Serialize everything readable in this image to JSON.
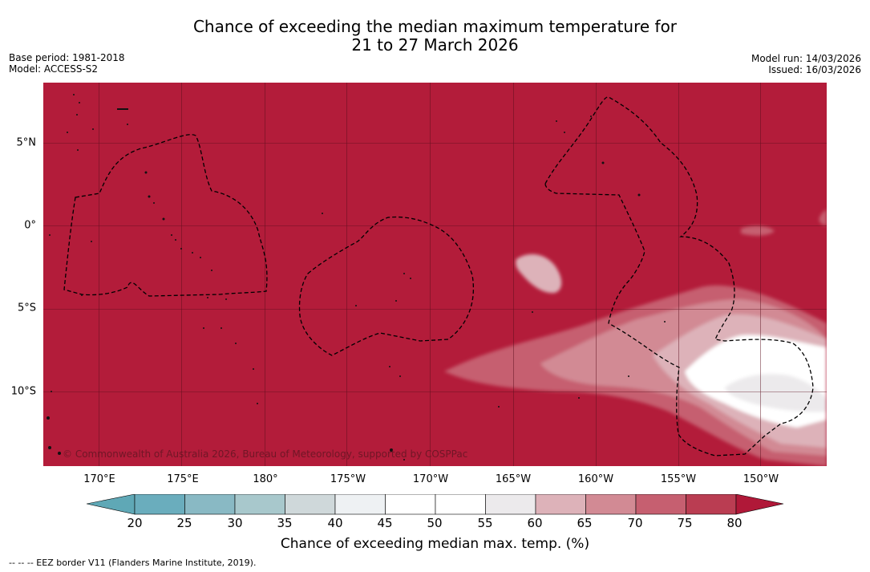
{
  "title_line1": "Chance of exceeding the median maximum temperature for",
  "title_line2": "21 to 27 March 2026",
  "meta_left": {
    "base_period": "Base period: 1981-2018",
    "model": "Model: ACCESS-S2"
  },
  "meta_right": {
    "model_run": "Model run: 14/03/2026",
    "issued": "Issued: 16/03/2026"
  },
  "map": {
    "background_color": "#b31c3a",
    "grid": true,
    "lon_labels": [
      "170°E",
      "175°E",
      "180°",
      "175°W",
      "170°W",
      "165°W",
      "160°W",
      "155°W",
      "150°W"
    ],
    "lat_labels": [
      "5°N",
      "0°",
      "5°S",
      "10°S"
    ],
    "copyright": "© Commonwealth of Australia 2026, Bureau of Meteorology, supported by COSPPac"
  },
  "colorbar": {
    "ticks": [
      "20",
      "25",
      "30",
      "35",
      "40",
      "45",
      "50",
      "55",
      "60",
      "65",
      "70",
      "75",
      "80"
    ],
    "colors": [
      "#5fa8b6",
      "#6aadbd",
      "#89b9c4",
      "#a8c8cc",
      "#cfd8da",
      "#eef1f3",
      "#ffffff",
      "#ffffff",
      "#eceaec",
      "#ddb2b9",
      "#d28a94",
      "#c65f70",
      "#ba3d52",
      "#b01838"
    ],
    "label": "Chance of exceeding median max. temp. (%)"
  },
  "footnote": "--  --  -- EEZ border V11 (Flanders Marine Institute, 2019)."
}
